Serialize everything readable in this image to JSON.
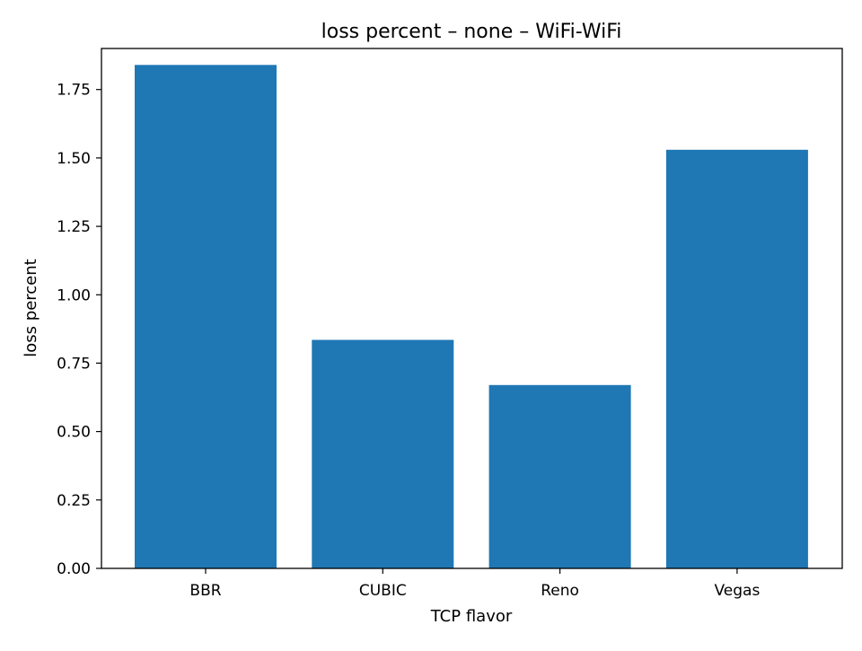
{
  "chart_data": {
    "type": "bar",
    "title": "loss percent – none – WiFi-WiFi",
    "xlabel": "TCP flavor",
    "ylabel": "loss percent",
    "categories": [
      "BBR",
      "CUBIC",
      "Reno",
      "Vegas"
    ],
    "values": [
      1.84,
      0.835,
      0.67,
      1.53
    ],
    "ylim": [
      0,
      1.9
    ],
    "yticks": [
      "0.00",
      "0.25",
      "0.50",
      "0.75",
      "1.00",
      "1.25",
      "1.50",
      "1.75"
    ],
    "grid": false,
    "bar_color": "#1f77b4"
  }
}
